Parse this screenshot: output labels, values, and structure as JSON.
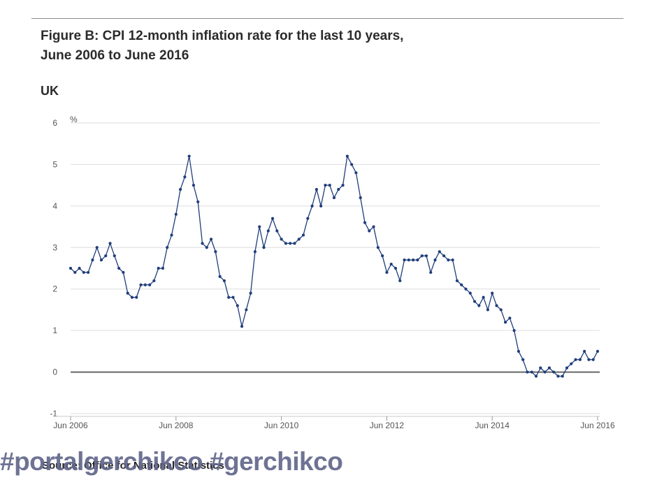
{
  "header": {
    "title_line1": "Figure B: CPI 12-month inflation rate for the last 10 years,",
    "title_line2": "June 2006 to June 2016",
    "region": "UK"
  },
  "footer": {
    "source": "Source: Office for National Statistics",
    "watermark": "#portalgerchikco #gerchikco"
  },
  "colors": {
    "line": "#1f3d7a",
    "grid": "#dddddd",
    "zero": "#666666"
  },
  "chart_data": {
    "type": "line",
    "title": "Figure B: CPI 12-month inflation rate for the last 10 years, June 2006 to June 2016",
    "subtitle": "UK",
    "ylabel": "%",
    "xlabel": "",
    "ylim": [
      -1,
      6
    ],
    "yticks": [
      -1,
      0,
      1,
      2,
      3,
      4,
      5,
      6
    ],
    "x_tick_labels": [
      "Jun 2006",
      "Jun 2008",
      "Jun 2010",
      "Jun 2012",
      "Jun 2014",
      "Jun 2016"
    ],
    "x_tick_index": [
      0,
      24,
      48,
      72,
      96,
      120
    ],
    "x_start": "Jun 2006",
    "x_end": "Jun 2016",
    "frequency": "monthly",
    "grid": true,
    "series": [
      {
        "name": "CPI 12-month inflation rate",
        "values": [
          2.5,
          2.4,
          2.5,
          2.4,
          2.4,
          2.7,
          3.0,
          2.7,
          2.8,
          3.1,
          2.8,
          2.5,
          2.4,
          1.9,
          1.8,
          1.8,
          2.1,
          2.1,
          2.1,
          2.2,
          2.5,
          2.5,
          3.0,
          3.3,
          3.8,
          4.4,
          4.7,
          5.2,
          4.5,
          4.1,
          3.1,
          3.0,
          3.2,
          2.9,
          2.3,
          2.2,
          1.8,
          1.8,
          1.6,
          1.1,
          1.5,
          1.9,
          2.9,
          3.5,
          3.0,
          3.4,
          3.7,
          3.4,
          3.2,
          3.1,
          3.1,
          3.1,
          3.2,
          3.3,
          3.7,
          4.0,
          4.4,
          4.0,
          4.5,
          4.5,
          4.2,
          4.4,
          4.5,
          5.2,
          5.0,
          4.8,
          4.2,
          3.6,
          3.4,
          3.5,
          3.0,
          2.8,
          2.4,
          2.6,
          2.5,
          2.2,
          2.7,
          2.7,
          2.7,
          2.7,
          2.8,
          2.8,
          2.4,
          2.7,
          2.9,
          2.8,
          2.7,
          2.7,
          2.2,
          2.1,
          2.0,
          1.9,
          1.7,
          1.6,
          1.8,
          1.5,
          1.9,
          1.6,
          1.5,
          1.2,
          1.3,
          1.0,
          0.5,
          0.3,
          0.0,
          0.0,
          -0.1,
          0.1,
          0.0,
          0.1,
          0.0,
          -0.1,
          -0.1,
          0.1,
          0.2,
          0.3,
          0.3,
          0.5,
          0.3,
          0.3,
          0.5
        ]
      }
    ]
  }
}
